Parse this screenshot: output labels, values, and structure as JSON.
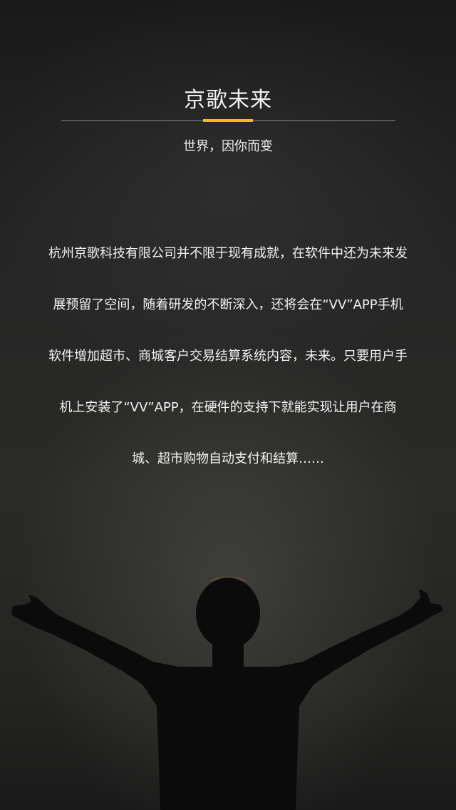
{
  "header": {
    "title": "京歌未来",
    "subtitle": "世界，因你而变"
  },
  "accent_color": "#f2c200",
  "body": {
    "lines": [
      "杭州京歌科技有限公司并不限于现有成就，在软件中还为未来发",
      "展预留了空间，随着研发的不断深入，还将会在“VV”APP手机",
      "软件增加超市、商城客户交易结算系统内容，未来。只要用户手",
      "机上安装了“VV”APP，在硬件的支持下就能实现让用户在商",
      "城、超市购物自动支付和结算……"
    ]
  },
  "background": {
    "image": "person-silhouette-arms-raised"
  }
}
